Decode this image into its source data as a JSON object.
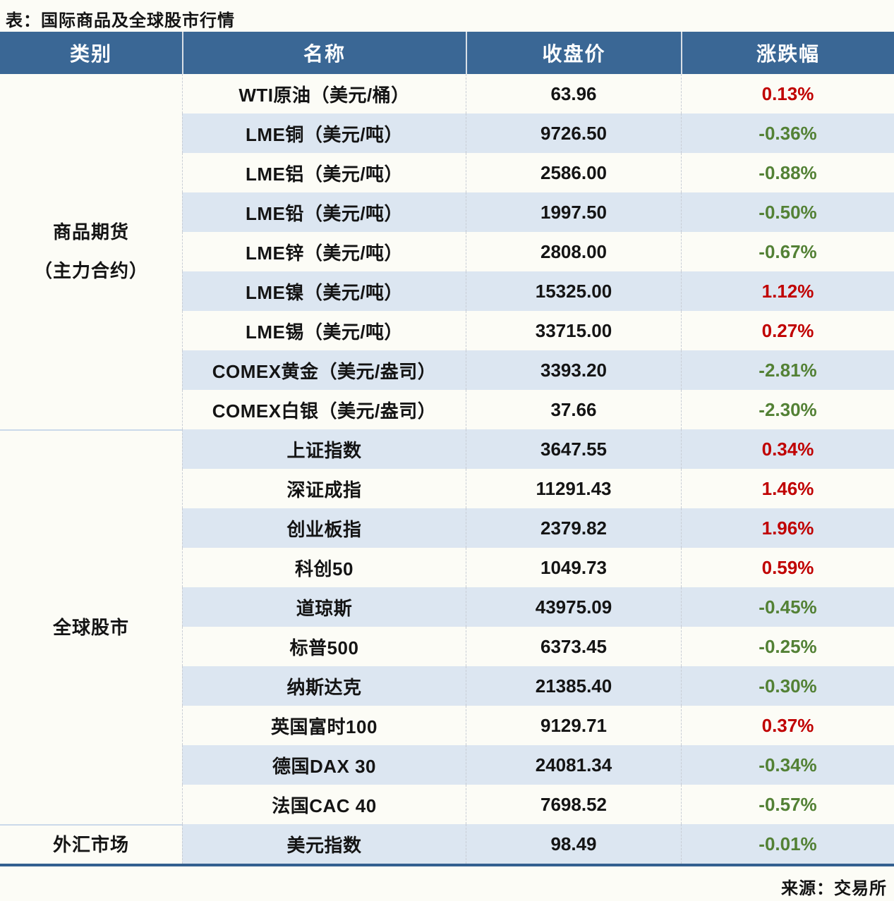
{
  "page": {
    "title": "表：国际商品及全球股市行情",
    "source": "来源：交易所"
  },
  "colors": {
    "header_bg": "#3A6795",
    "band_bg": "#DCE6F1",
    "page_bg": "#FCFCF6",
    "up_red": "#C00000",
    "down_green": "#538135",
    "bottom_border": "#336090",
    "section_divider": "#CBD9EA"
  },
  "table": {
    "headers": [
      "类别",
      "名称",
      "收盘价",
      "涨跌幅"
    ],
    "sections": [
      {
        "category_lines": [
          "商品期货",
          "（主力合约）"
        ],
        "rows": [
          {
            "name": "WTI原油（美元/桶）",
            "close": "63.96",
            "change": "0.13%",
            "direction": "up"
          },
          {
            "name": "LME铜（美元/吨）",
            "close": "9726.50",
            "change": "-0.36%",
            "direction": "down"
          },
          {
            "name": "LME铝（美元/吨）",
            "close": "2586.00",
            "change": "-0.88%",
            "direction": "down"
          },
          {
            "name": "LME铅（美元/吨）",
            "close": "1997.50",
            "change": "-0.50%",
            "direction": "down"
          },
          {
            "name": "LME锌（美元/吨）",
            "close": "2808.00",
            "change": "-0.67%",
            "direction": "down"
          },
          {
            "name": "LME镍（美元/吨）",
            "close": "15325.00",
            "change": "1.12%",
            "direction": "up"
          },
          {
            "name": "LME锡（美元/吨）",
            "close": "33715.00",
            "change": "0.27%",
            "direction": "up"
          },
          {
            "name": "COMEX黄金（美元/盎司）",
            "close": "3393.20",
            "change": "-2.81%",
            "direction": "down"
          },
          {
            "name": "COMEX白银（美元/盎司）",
            "close": "37.66",
            "change": "-2.30%",
            "direction": "down"
          }
        ]
      },
      {
        "category_lines": [
          "全球股市"
        ],
        "rows": [
          {
            "name": "上证指数",
            "close": "3647.55",
            "change": "0.34%",
            "direction": "up"
          },
          {
            "name": "深证成指",
            "close": "11291.43",
            "change": "1.46%",
            "direction": "up"
          },
          {
            "name": "创业板指",
            "close": "2379.82",
            "change": "1.96%",
            "direction": "up"
          },
          {
            "name": "科创50",
            "close": "1049.73",
            "change": "0.59%",
            "direction": "up"
          },
          {
            "name": "道琼斯",
            "close": "43975.09",
            "change": "-0.45%",
            "direction": "down"
          },
          {
            "name": "标普500",
            "close": "6373.45",
            "change": "-0.25%",
            "direction": "down"
          },
          {
            "name": "纳斯达克",
            "close": "21385.40",
            "change": "-0.30%",
            "direction": "down"
          },
          {
            "name": "英国富时100",
            "close": "9129.71",
            "change": "0.37%",
            "direction": "up"
          },
          {
            "name": "德国DAX 30",
            "close": "24081.34",
            "change": "-0.34%",
            "direction": "down"
          },
          {
            "name": "法国CAC 40",
            "close": "7698.52",
            "change": "-0.57%",
            "direction": "down"
          }
        ]
      },
      {
        "category_lines": [
          "外汇市场"
        ],
        "rows": [
          {
            "name": "美元指数",
            "close": "98.49",
            "change": "-0.01%",
            "direction": "down"
          }
        ]
      }
    ]
  },
  "chart_data": {
    "type": "table",
    "title": "表：国际商品及全球股市行情",
    "columns": [
      "类别",
      "名称",
      "收盘价",
      "涨跌幅"
    ],
    "rows": [
      [
        "商品期货（主力合约）",
        "WTI原油（美元/桶）",
        63.96,
        "0.13%"
      ],
      [
        "商品期货（主力合约）",
        "LME铜（美元/吨）",
        9726.5,
        "-0.36%"
      ],
      [
        "商品期货（主力合约）",
        "LME铝（美元/吨）",
        2586.0,
        "-0.88%"
      ],
      [
        "商品期货（主力合约）",
        "LME铅（美元/吨）",
        1997.5,
        "-0.50%"
      ],
      [
        "商品期货（主力合约）",
        "LME锌（美元/吨）",
        2808.0,
        "-0.67%"
      ],
      [
        "商品期货（主力合约）",
        "LME镍（美元/吨）",
        15325.0,
        "1.12%"
      ],
      [
        "商品期货（主力合约）",
        "LME锡（美元/吨）",
        33715.0,
        "0.27%"
      ],
      [
        "商品期货（主力合约）",
        "COMEX黄金（美元/盎司）",
        3393.2,
        "-2.81%"
      ],
      [
        "商品期货（主力合约）",
        "COMEX白银（美元/盎司）",
        37.66,
        "-2.30%"
      ],
      [
        "全球股市",
        "上证指数",
        3647.55,
        "0.34%"
      ],
      [
        "全球股市",
        "深证成指",
        11291.43,
        "1.46%"
      ],
      [
        "全球股市",
        "创业板指",
        2379.82,
        "1.96%"
      ],
      [
        "全球股市",
        "科创50",
        1049.73,
        "0.59%"
      ],
      [
        "全球股市",
        "道琼斯",
        43975.09,
        "-0.45%"
      ],
      [
        "全球股市",
        "标普500",
        6373.45,
        "-0.25%"
      ],
      [
        "全球股市",
        "纳斯达克",
        21385.4,
        "-0.30%"
      ],
      [
        "全球股市",
        "英国富时100",
        9129.71,
        "0.37%"
      ],
      [
        "全球股市",
        "德国DAX 30",
        24081.34,
        "-0.34%"
      ],
      [
        "全球股市",
        "法国CAC 40",
        7698.52,
        "-0.57%"
      ],
      [
        "外汇市场",
        "美元指数",
        98.49,
        "-0.01%"
      ]
    ],
    "styles": {
      "positive_change_color": "#C00000",
      "negative_change_color": "#538135",
      "banded_rows": true,
      "legend_position": "none",
      "grid": "column-dashed"
    }
  }
}
